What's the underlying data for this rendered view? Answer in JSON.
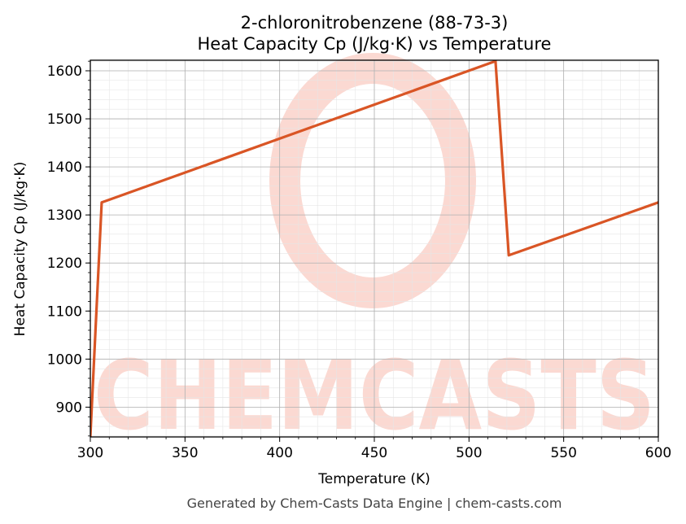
{
  "chart_data": {
    "type": "line",
    "title": "2-chloronitrobenzene (88-73-3)",
    "subtitle": "Heat Capacity Cp (J/kg·K) vs Temperature",
    "xlabel": "Temperature (K)",
    "ylabel": "Heat Capacity Cp (J/kg·K)",
    "xlim": [
      300,
      600
    ],
    "ylim": [
      838,
      1622
    ],
    "xticks": [
      300,
      350,
      400,
      450,
      500,
      550,
      600
    ],
    "yticks": [
      900,
      1000,
      1100,
      1200,
      1300,
      1400,
      1500,
      1600
    ],
    "grid": true,
    "series": [
      {
        "color": "#d95525",
        "x": [
          300,
          306,
          514,
          521,
          600
        ],
        "y": [
          838,
          1326,
          1620,
          1216,
          1326
        ]
      }
    ]
  },
  "watermark": {
    "text": "CHEMCASTS",
    "color": "#fbd9d2"
  },
  "footer": "Generated by Chem-Casts Data Engine | chem-casts.com"
}
